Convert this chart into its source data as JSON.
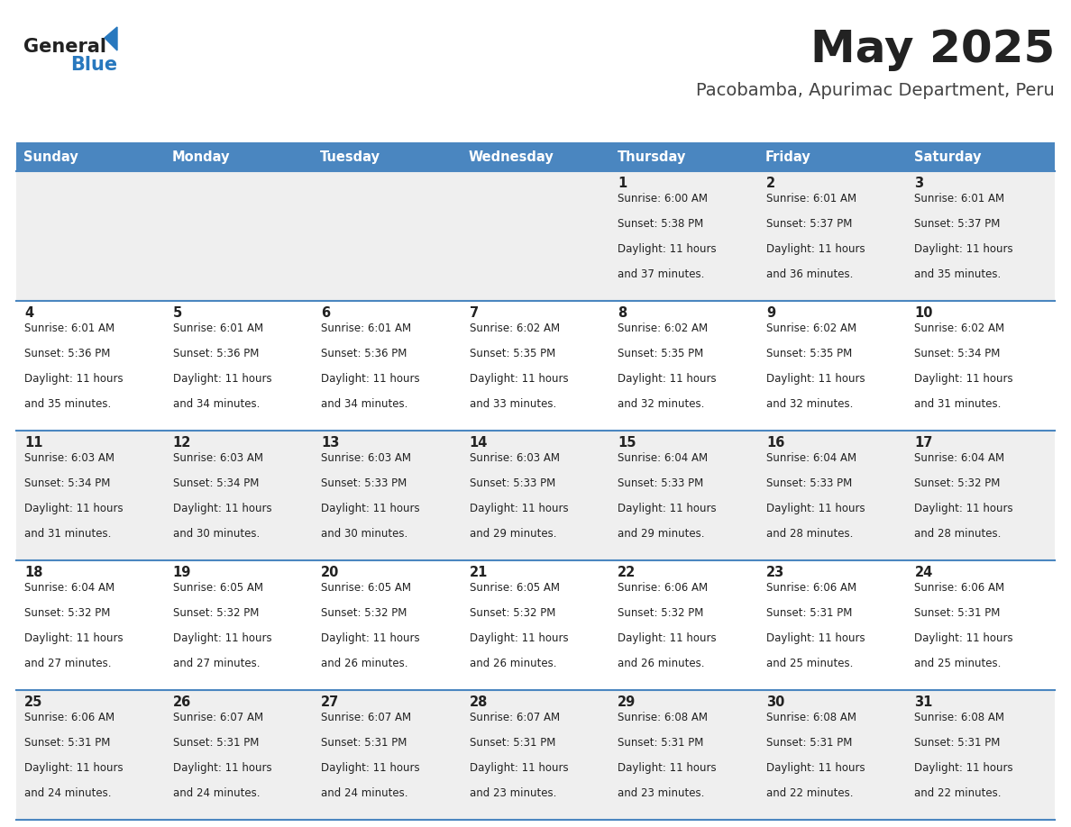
{
  "title": "May 2025",
  "subtitle": "Pacobamba, Apurimac Department, Peru",
  "days_of_week": [
    "Sunday",
    "Monday",
    "Tuesday",
    "Wednesday",
    "Thursday",
    "Friday",
    "Saturday"
  ],
  "header_bg": "#4a86c0",
  "header_text": "#ffffff",
  "row_bg_odd": "#efefef",
  "row_bg_even": "#ffffff",
  "cell_border": "#4a86c0",
  "day_number_color": "#222222",
  "info_text_color": "#222222",
  "title_color": "#222222",
  "subtitle_color": "#444444",
  "logo_general_color": "#222222",
  "logo_blue_color": "#2878be",
  "calendar_data": [
    [
      null,
      null,
      null,
      null,
      {
        "day": 1,
        "sunrise": "6:00 AM",
        "sunset": "5:38 PM",
        "daylight": "11 hours",
        "daylight2": "and 37 minutes."
      },
      {
        "day": 2,
        "sunrise": "6:01 AM",
        "sunset": "5:37 PM",
        "daylight": "11 hours",
        "daylight2": "and 36 minutes."
      },
      {
        "day": 3,
        "sunrise": "6:01 AM",
        "sunset": "5:37 PM",
        "daylight": "11 hours",
        "daylight2": "and 35 minutes."
      }
    ],
    [
      {
        "day": 4,
        "sunrise": "6:01 AM",
        "sunset": "5:36 PM",
        "daylight": "11 hours",
        "daylight2": "and 35 minutes."
      },
      {
        "day": 5,
        "sunrise": "6:01 AM",
        "sunset": "5:36 PM",
        "daylight": "11 hours",
        "daylight2": "and 34 minutes."
      },
      {
        "day": 6,
        "sunrise": "6:01 AM",
        "sunset": "5:36 PM",
        "daylight": "11 hours",
        "daylight2": "and 34 minutes."
      },
      {
        "day": 7,
        "sunrise": "6:02 AM",
        "sunset": "5:35 PM",
        "daylight": "11 hours",
        "daylight2": "and 33 minutes."
      },
      {
        "day": 8,
        "sunrise": "6:02 AM",
        "sunset": "5:35 PM",
        "daylight": "11 hours",
        "daylight2": "and 32 minutes."
      },
      {
        "day": 9,
        "sunrise": "6:02 AM",
        "sunset": "5:35 PM",
        "daylight": "11 hours",
        "daylight2": "and 32 minutes."
      },
      {
        "day": 10,
        "sunrise": "6:02 AM",
        "sunset": "5:34 PM",
        "daylight": "11 hours",
        "daylight2": "and 31 minutes."
      }
    ],
    [
      {
        "day": 11,
        "sunrise": "6:03 AM",
        "sunset": "5:34 PM",
        "daylight": "11 hours",
        "daylight2": "and 31 minutes."
      },
      {
        "day": 12,
        "sunrise": "6:03 AM",
        "sunset": "5:34 PM",
        "daylight": "11 hours",
        "daylight2": "and 30 minutes."
      },
      {
        "day": 13,
        "sunrise": "6:03 AM",
        "sunset": "5:33 PM",
        "daylight": "11 hours",
        "daylight2": "and 30 minutes."
      },
      {
        "day": 14,
        "sunrise": "6:03 AM",
        "sunset": "5:33 PM",
        "daylight": "11 hours",
        "daylight2": "and 29 minutes."
      },
      {
        "day": 15,
        "sunrise": "6:04 AM",
        "sunset": "5:33 PM",
        "daylight": "11 hours",
        "daylight2": "and 29 minutes."
      },
      {
        "day": 16,
        "sunrise": "6:04 AM",
        "sunset": "5:33 PM",
        "daylight": "11 hours",
        "daylight2": "and 28 minutes."
      },
      {
        "day": 17,
        "sunrise": "6:04 AM",
        "sunset": "5:32 PM",
        "daylight": "11 hours",
        "daylight2": "and 28 minutes."
      }
    ],
    [
      {
        "day": 18,
        "sunrise": "6:04 AM",
        "sunset": "5:32 PM",
        "daylight": "11 hours",
        "daylight2": "and 27 minutes."
      },
      {
        "day": 19,
        "sunrise": "6:05 AM",
        "sunset": "5:32 PM",
        "daylight": "11 hours",
        "daylight2": "and 27 minutes."
      },
      {
        "day": 20,
        "sunrise": "6:05 AM",
        "sunset": "5:32 PM",
        "daylight": "11 hours",
        "daylight2": "and 26 minutes."
      },
      {
        "day": 21,
        "sunrise": "6:05 AM",
        "sunset": "5:32 PM",
        "daylight": "11 hours",
        "daylight2": "and 26 minutes."
      },
      {
        "day": 22,
        "sunrise": "6:06 AM",
        "sunset": "5:32 PM",
        "daylight": "11 hours",
        "daylight2": "and 26 minutes."
      },
      {
        "day": 23,
        "sunrise": "6:06 AM",
        "sunset": "5:31 PM",
        "daylight": "11 hours",
        "daylight2": "and 25 minutes."
      },
      {
        "day": 24,
        "sunrise": "6:06 AM",
        "sunset": "5:31 PM",
        "daylight": "11 hours",
        "daylight2": "and 25 minutes."
      }
    ],
    [
      {
        "day": 25,
        "sunrise": "6:06 AM",
        "sunset": "5:31 PM",
        "daylight": "11 hours",
        "daylight2": "and 24 minutes."
      },
      {
        "day": 26,
        "sunrise": "6:07 AM",
        "sunset": "5:31 PM",
        "daylight": "11 hours",
        "daylight2": "and 24 minutes."
      },
      {
        "day": 27,
        "sunrise": "6:07 AM",
        "sunset": "5:31 PM",
        "daylight": "11 hours",
        "daylight2": "and 24 minutes."
      },
      {
        "day": 28,
        "sunrise": "6:07 AM",
        "sunset": "5:31 PM",
        "daylight": "11 hours",
        "daylight2": "and 23 minutes."
      },
      {
        "day": 29,
        "sunrise": "6:08 AM",
        "sunset": "5:31 PM",
        "daylight": "11 hours",
        "daylight2": "and 23 minutes."
      },
      {
        "day": 30,
        "sunrise": "6:08 AM",
        "sunset": "5:31 PM",
        "daylight": "11 hours",
        "daylight2": "and 22 minutes."
      },
      {
        "day": 31,
        "sunrise": "6:08 AM",
        "sunset": "5:31 PM",
        "daylight": "11 hours",
        "daylight2": "and 22 minutes."
      }
    ]
  ]
}
